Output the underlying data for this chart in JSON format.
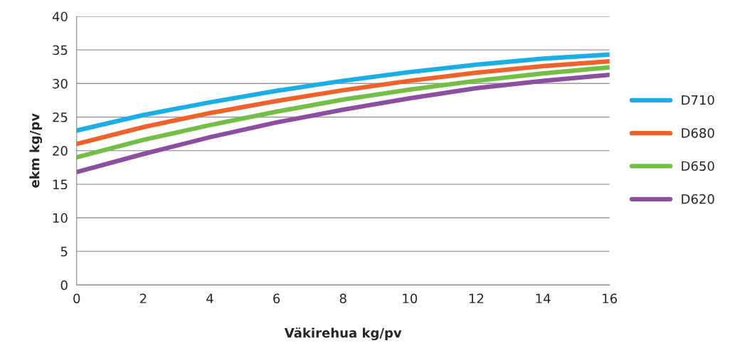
{
  "chart_data": {
    "type": "line",
    "xlabel": "Väkirehua kg/pv",
    "ylabel": "ekm kg/pv",
    "x": [
      0,
      2,
      4,
      6,
      8,
      10,
      12,
      14,
      16
    ],
    "series": [
      {
        "name": "D710",
        "color": "#1aaee8",
        "values": [
          23,
          25.3,
          27.2,
          28.9,
          30.4,
          31.7,
          32.8,
          33.7,
          34.3
        ]
      },
      {
        "name": "D680",
        "color": "#f0622a",
        "values": [
          21,
          23.5,
          25.6,
          27.4,
          29.0,
          30.4,
          31.6,
          32.6,
          33.3
        ]
      },
      {
        "name": "D650",
        "color": "#72bf44",
        "values": [
          19,
          21.6,
          23.8,
          25.8,
          27.6,
          29.1,
          30.4,
          31.5,
          32.4
        ]
      },
      {
        "name": "D620",
        "color": "#8b4ea0",
        "values": [
          16.8,
          19.5,
          22.0,
          24.2,
          26.1,
          27.8,
          29.3,
          30.4,
          31.3
        ]
      }
    ],
    "xlim": [
      0,
      16
    ],
    "xticks": [
      0,
      2,
      4,
      6,
      8,
      10,
      12,
      14,
      16
    ],
    "ylim": [
      0,
      40
    ],
    "yticks": [
      0,
      5,
      10,
      15,
      20,
      25,
      30,
      35,
      40
    ],
    "grid": "y",
    "legend": "right",
    "marker": "none",
    "line_style": "solid"
  }
}
